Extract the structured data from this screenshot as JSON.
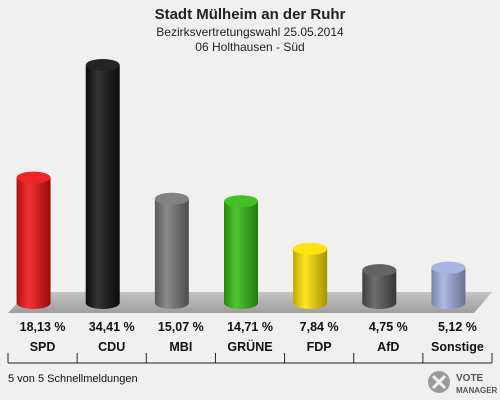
{
  "chart_data": {
    "type": "bar",
    "title": "Stadt Mülheim an der Ruhr",
    "subtitle_1": "Bezirksvertretungswahl 25.05.2014",
    "subtitle_2": "06 Holthausen - Süd",
    "categories": [
      "SPD",
      "CDU",
      "MBI",
      "GRÜNE",
      "FDP",
      "AfD",
      "Sonstige"
    ],
    "values": [
      18.13,
      34.41,
      15.07,
      14.71,
      7.84,
      4.75,
      5.12
    ],
    "value_labels": [
      "18,13 %",
      "34,41 %",
      "15,07 %",
      "14,71 %",
      "7,84 %",
      "4,75 %",
      "5,12 %"
    ],
    "colors": [
      "#ee1111",
      "#111111",
      "#777777",
      "#33bb11",
      "#ffe000",
      "#555555",
      "#a0aee0"
    ],
    "ylim": [
      0,
      34.41
    ],
    "grid": false
  },
  "footer": "5 von 5 Schnellmeldungen",
  "logo": {
    "line1": "VOTE",
    "line2": "MANAGER",
    "icon": "vote-manager-logo-icon"
  }
}
